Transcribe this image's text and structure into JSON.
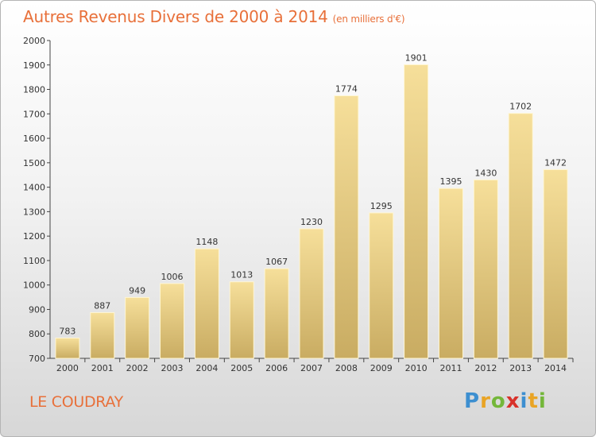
{
  "chart_data": {
    "type": "bar",
    "title": "Autres Revenus Divers de 2000 à 2014",
    "subtitle": "(en milliers d'€)",
    "categories": [
      "2000",
      "2001",
      "2002",
      "2003",
      "2004",
      "2005",
      "2006",
      "2007",
      "2008",
      "2009",
      "2010",
      "2011",
      "2012",
      "2013",
      "2014"
    ],
    "values": [
      783,
      887,
      949,
      1006,
      1148,
      1013,
      1067,
      1230,
      1774,
      1295,
      1901,
      1395,
      1430,
      1702,
      1472
    ],
    "ylim": [
      700,
      2000
    ],
    "yticks": [
      700,
      800,
      900,
      1000,
      1100,
      1200,
      1300,
      1400,
      1500,
      1600,
      1700,
      1800,
      1900,
      2000
    ],
    "grid": false,
    "xlabel": "",
    "ylabel": "",
    "colors": {
      "bar_light": "#f6df9a",
      "bar_dark": "#c9ac62",
      "title": "#e8703a"
    }
  },
  "footer": {
    "commune": "LE COUDRAY",
    "brand_letters": [
      {
        "ch": "P",
        "color": "#3d8fd0"
      },
      {
        "ch": "r",
        "color": "#e9a425"
      },
      {
        "ch": "o",
        "color": "#74b73a"
      },
      {
        "ch": "x",
        "color": "#d8322b"
      },
      {
        "ch": "i",
        "color": "#3d8fd0"
      },
      {
        "ch": "t",
        "color": "#e9a425"
      },
      {
        "ch": "i",
        "color": "#74b73a"
      }
    ]
  }
}
